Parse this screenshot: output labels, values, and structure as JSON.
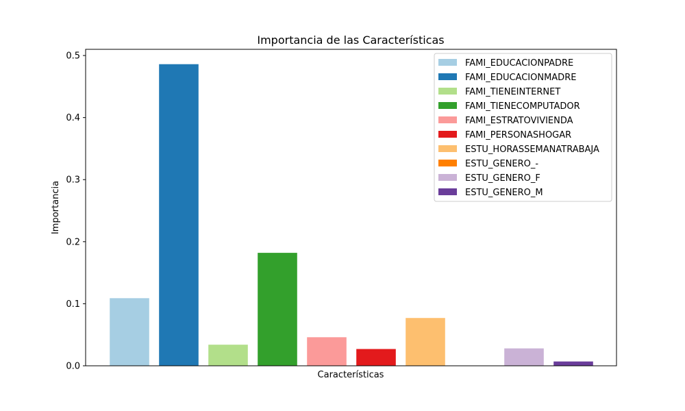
{
  "chart_data": {
    "type": "bar",
    "title": "Importancia de las Características",
    "xlabel": "Características",
    "ylabel": "Importancia",
    "ylim": [
      0,
      0.51
    ],
    "yticks": [
      0.0,
      0.1,
      0.2,
      0.3,
      0.4,
      0.5
    ],
    "ytick_labels": [
      "0.0",
      "0.1",
      "0.2",
      "0.3",
      "0.4",
      "0.5"
    ],
    "grid": false,
    "legend_position": "top-right",
    "categories": [
      "FAMI_EDUCACIONPADRE",
      "FAMI_EDUCACIONMADRE",
      "FAMI_TIENEINTERNET",
      "FAMI_TIENECOMPUTADOR",
      "FAMI_ESTRATOVIVIENDA",
      "FAMI_PERSONASHOGAR",
      "ESTU_HORASSEMANATRABAJA",
      "ESTU_GENERO_-",
      "ESTU_GENERO_F",
      "ESTU_GENERO_M"
    ],
    "values": [
      0.109,
      0.486,
      0.034,
      0.182,
      0.046,
      0.027,
      0.077,
      0.0,
      0.028,
      0.007
    ],
    "colors": [
      "#a6cee3",
      "#1f78b4",
      "#b2df8a",
      "#33a02c",
      "#fb9a99",
      "#e31a1c",
      "#fdbf6f",
      "#ff7f00",
      "#cab2d6",
      "#6a3d9a"
    ]
  }
}
